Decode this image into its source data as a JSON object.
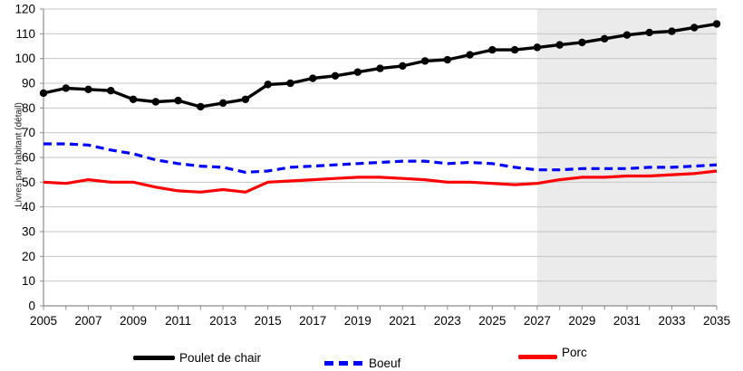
{
  "chart_data": {
    "type": "line",
    "title": "",
    "xlabel": "",
    "ylabel": "Livres par habitant (détail)",
    "xlim": [
      2005,
      2035
    ],
    "ylim": [
      0,
      120
    ],
    "grid": true,
    "legend_position": "bottom",
    "x": [
      2005,
      2006,
      2007,
      2008,
      2009,
      2010,
      2011,
      2012,
      2013,
      2014,
      2015,
      2016,
      2017,
      2018,
      2019,
      2020,
      2021,
      2022,
      2023,
      2024,
      2025,
      2026,
      2027,
      2028,
      2029,
      2030,
      2031,
      2032,
      2033,
      2034,
      2035
    ],
    "x_tick_labels": [
      "2005",
      "2007",
      "2009",
      "2011",
      "2013",
      "2015",
      "2017",
      "2019",
      "2021",
      "2023",
      "2025",
      "2027",
      "2029",
      "2031",
      "2033",
      "2035"
    ],
    "y_ticks": [
      0,
      10,
      20,
      30,
      40,
      50,
      60,
      70,
      80,
      90,
      100,
      110,
      120
    ],
    "forecast_shading": {
      "start_year": 2027,
      "end_year": 2035,
      "color": "#ebebeb"
    },
    "series": [
      {
        "name": "Poulet de chair",
        "color": "#000000",
        "style": "solid",
        "markers": true,
        "values": [
          86,
          88,
          87.5,
          87,
          83.5,
          82.5,
          83,
          80.5,
          82,
          83.5,
          89.5,
          90,
          92,
          93,
          94.5,
          96,
          97,
          99,
          99.5,
          101.5,
          103.5,
          103.5,
          104.5,
          105.5,
          106.5,
          108,
          109.5,
          110.5,
          111,
          112.5,
          114
        ]
      },
      {
        "name": "Boeuf",
        "color": "#0000ff",
        "style": "dashed",
        "markers": false,
        "values": [
          65.5,
          65.5,
          65,
          63,
          61.5,
          59,
          57.5,
          56.5,
          56,
          54,
          54.5,
          56,
          56.5,
          57,
          57.5,
          58,
          58.5,
          58.5,
          57.5,
          58,
          57.5,
          56,
          55,
          55,
          55.5,
          55.5,
          55.5,
          56,
          56,
          56.5,
          57
        ]
      },
      {
        "name": "Porc",
        "color": "#ff0000",
        "style": "solid",
        "markers": false,
        "values": [
          50,
          49.5,
          51,
          50,
          50,
          48,
          46.5,
          46,
          47,
          46,
          50,
          50.5,
          51,
          51.5,
          52,
          52,
          51.5,
          51,
          50,
          50,
          49.5,
          49,
          49.5,
          51,
          52,
          52,
          52.5,
          52.5,
          53,
          53.5,
          54.5
        ]
      }
    ],
    "colors": {
      "axis": "#8c8c8c",
      "gridline": "#c6c6c6",
      "background": "#ffffff",
      "forecast_band": "#ebebeb"
    }
  }
}
